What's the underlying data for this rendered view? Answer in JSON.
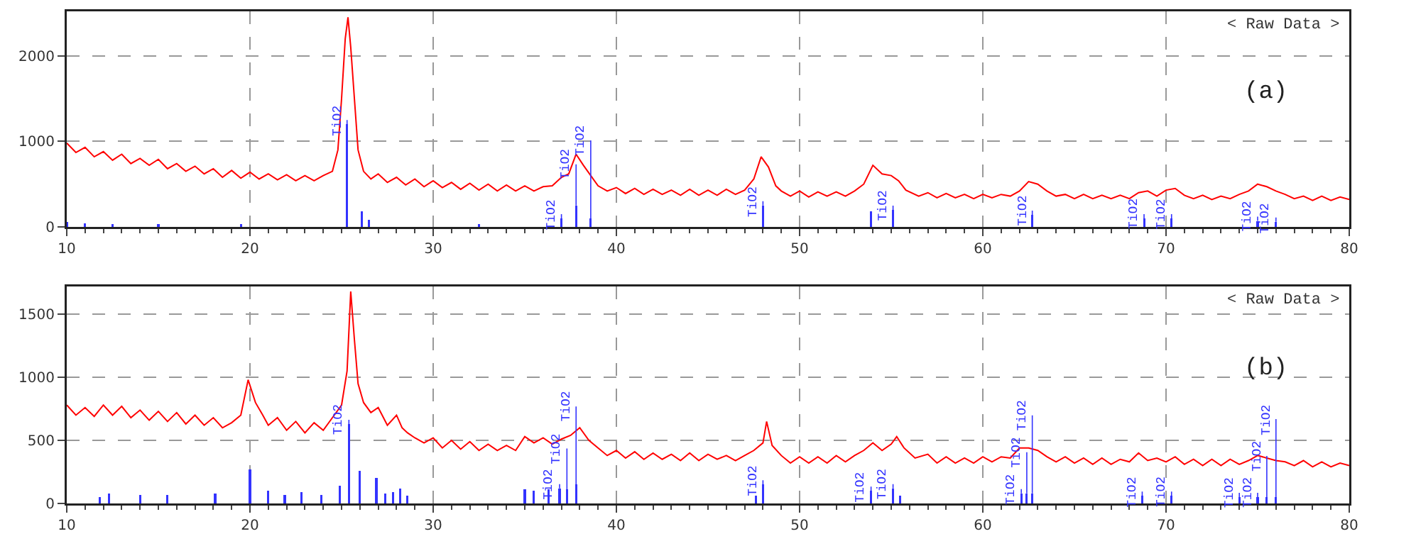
{
  "chart_data": [
    {
      "type": "line",
      "annotations": [
        "< Raw Data >",
        "(a)",
        {
          "text": "TiO2",
          "x": 25.3,
          "y": 1200
        },
        {
          "text": "TiO2",
          "x": 37,
          "y": 100
        },
        {
          "text": "TiO2",
          "x": 37.8,
          "y": 250
        },
        {
          "text": "TiO2",
          "x": 38.6,
          "y": 100
        },
        {
          "text": "TiO2",
          "x": 48,
          "y": 250
        },
        {
          "text": "TiO2",
          "x": 55.1,
          "y": 200
        },
        {
          "text": "TiO2",
          "x": 62.7,
          "y": 140
        },
        {
          "text": "TiO2",
          "x": 68.8,
          "y": 100
        },
        {
          "text": "TiO2",
          "x": 70.3,
          "y": 100
        },
        {
          "text": "TiO2",
          "x": 75,
          "y": 70
        },
        {
          "text": "TiO2",
          "x": 76,
          "y": 60
        }
      ],
      "xlim": [
        10,
        80
      ],
      "xticks": [
        10,
        20,
        30,
        40,
        50,
        60,
        70,
        80
      ],
      "ylim": [
        0,
        2520
      ],
      "yticks": [
        0,
        1000,
        2000
      ],
      "grid": true,
      "line_style": "solid",
      "marker": "none",
      "series": [
        {
          "type": "line",
          "color": "#ff0000",
          "x": [
            10,
            10.5,
            11,
            11.5,
            12,
            12.5,
            13,
            13.5,
            14,
            14.5,
            15,
            15.5,
            16,
            16.5,
            17,
            17.5,
            18,
            18.5,
            19,
            19.5,
            20,
            20.5,
            21,
            21.5,
            22,
            22.5,
            23,
            23.5,
            24,
            24.5,
            24.8,
            25.0,
            25.2,
            25.35,
            25.5,
            25.7,
            25.9,
            26.2,
            26.6,
            27,
            27.5,
            28,
            28.5,
            29,
            29.5,
            30,
            30.5,
            31,
            31.5,
            32,
            32.5,
            33,
            33.5,
            34,
            34.5,
            35,
            35.5,
            36,
            36.5,
            37,
            37.4,
            37.8,
            38.2,
            38.6,
            39,
            39.5,
            40,
            40.5,
            41,
            41.5,
            42,
            42.5,
            43,
            43.5,
            44,
            44.5,
            45,
            45.5,
            46,
            46.5,
            47,
            47.5,
            47.9,
            48.3,
            48.7,
            49,
            49.5,
            50,
            50.5,
            51,
            51.5,
            52,
            52.5,
            53,
            53.5,
            54,
            54.5,
            55,
            55.4,
            55.8,
            56.5,
            57,
            57.5,
            58,
            58.5,
            59,
            59.5,
            60,
            60.5,
            61,
            61.5,
            62,
            62.5,
            63,
            63.5,
            64,
            64.5,
            65,
            65.5,
            66,
            66.5,
            67,
            67.5,
            68,
            68.5,
            69,
            69.5,
            70,
            70.5,
            71,
            71.5,
            72,
            72.5,
            73,
            73.5,
            74,
            74.5,
            75,
            75.5,
            76,
            76.5,
            77,
            77.5,
            78,
            78.5,
            79,
            79.5,
            80
          ],
          "values": [
            980,
            870,
            930,
            820,
            880,
            780,
            850,
            740,
            800,
            720,
            790,
            680,
            740,
            650,
            710,
            620,
            680,
            580,
            660,
            570,
            640,
            560,
            620,
            550,
            610,
            540,
            600,
            540,
            600,
            650,
            900,
            1500,
            2200,
            2450,
            2100,
            1500,
            900,
            650,
            560,
            620,
            520,
            580,
            490,
            560,
            470,
            540,
            460,
            520,
            440,
            510,
            430,
            500,
            420,
            490,
            420,
            480,
            420,
            470,
            480,
            580,
            620,
            850,
            720,
            600,
            480,
            420,
            460,
            390,
            450,
            380,
            440,
            380,
            430,
            370,
            440,
            370,
            430,
            370,
            440,
            380,
            430,
            560,
            820,
            700,
            480,
            420,
            360,
            420,
            350,
            410,
            360,
            410,
            360,
            420,
            500,
            720,
            620,
            600,
            540,
            430,
            360,
            400,
            340,
            390,
            340,
            380,
            330,
            380,
            340,
            380,
            360,
            420,
            530,
            500,
            420,
            360,
            380,
            330,
            380,
            330,
            370,
            330,
            370,
            330,
            400,
            420,
            360,
            430,
            450,
            370,
            330,
            370,
            320,
            360,
            330,
            380,
            420,
            500,
            470,
            420,
            380,
            330,
            360,
            310,
            360,
            310,
            350,
            320
          ]
        },
        {
          "type": "bar",
          "color": "#3333ff",
          "x": [
            10,
            11,
            12.5,
            15,
            19.5,
            25.3,
            26.1,
            26.5,
            32.5,
            37,
            37.8,
            38.6,
            48,
            53.9,
            55.1,
            62.7,
            68.8,
            70.3,
            75,
            76
          ],
          "values": [
            60,
            40,
            30,
            30,
            30,
            1200,
            180,
            80,
            30,
            100,
            250,
            100,
            250,
            180,
            200,
            140,
            100,
            100,
            70,
            60
          ]
        }
      ]
    },
    {
      "type": "line",
      "annotations": [
        "< Raw Data >",
        "(b)",
        {
          "text": "TiO2",
          "x": 25.4,
          "y": 630
        },
        {
          "text": "TiO2",
          "x": 36.9,
          "y": 120
        },
        {
          "text": "TiO2",
          "x": 37.3,
          "y": 110
        },
        {
          "text": "TiO2",
          "x": 37.8,
          "y": 150
        },
        {
          "text": "TiO2",
          "x": 48,
          "y": 150
        },
        {
          "text": "TiO2",
          "x": 53.9,
          "y": 100
        },
        {
          "text": "TiO2",
          "x": 55.1,
          "y": 120
        },
        {
          "text": "TiO2",
          "x": 62.1,
          "y": 80
        },
        {
          "text": "TiO2",
          "x": 62.4,
          "y": 80
        },
        {
          "text": "TiO2",
          "x": 62.7,
          "y": 80
        },
        {
          "text": "TiO2",
          "x": 68.7,
          "y": 60
        },
        {
          "text": "TiO2",
          "x": 70.3,
          "y": 60
        },
        {
          "text": "TiO2",
          "x": 74,
          "y": 50
        },
        {
          "text": "TiO2",
          "x": 75,
          "y": 50
        },
        {
          "text": "TiO2",
          "x": 75.5,
          "y": 50
        },
        {
          "text": "TiO2",
          "x": 76,
          "y": 50
        }
      ],
      "xlim": [
        10,
        80
      ],
      "xticks": [
        10,
        20,
        30,
        40,
        50,
        60,
        70,
        80
      ],
      "ylim": [
        0,
        1720
      ],
      "yticks": [
        0,
        500,
        1000,
        1500
      ],
      "grid": true,
      "line_style": "solid",
      "marker": "none",
      "series": [
        {
          "type": "line",
          "color": "#ff0000",
          "x": [
            10,
            10.5,
            11,
            11.5,
            12,
            12.5,
            13,
            13.5,
            14,
            14.5,
            15,
            15.5,
            16,
            16.5,
            17,
            17.5,
            18,
            18.5,
            19,
            19.5,
            19.9,
            20.3,
            20.7,
            21,
            21.5,
            22,
            22.5,
            23,
            23.5,
            24,
            24.5,
            25,
            25.3,
            25.5,
            25.7,
            25.9,
            26.2,
            26.6,
            27,
            27.5,
            28,
            28.3,
            28.6,
            29,
            29.5,
            30,
            30.5,
            31,
            31.5,
            32,
            32.5,
            33,
            33.5,
            34,
            34.5,
            35,
            35.5,
            36,
            36.5,
            37,
            37.5,
            38,
            38.5,
            39,
            39.5,
            40,
            40.5,
            41,
            41.5,
            42,
            42.5,
            43,
            43.5,
            44,
            44.5,
            45,
            45.5,
            46,
            46.5,
            47,
            47.5,
            48,
            48.2,
            48.5,
            49,
            49.5,
            50,
            50.5,
            51,
            51.5,
            52,
            52.5,
            53,
            53.5,
            54,
            54.5,
            55,
            55.3,
            55.7,
            56.3,
            57,
            57.5,
            58,
            58.5,
            59,
            59.5,
            60,
            60.5,
            61,
            61.5,
            62,
            62.5,
            63,
            63.5,
            64,
            64.5,
            65,
            65.5,
            66,
            66.5,
            67,
            67.5,
            68,
            68.5,
            69,
            69.5,
            70,
            70.5,
            71,
            71.5,
            72,
            72.5,
            73,
            73.5,
            74,
            74.5,
            75,
            75.5,
            76,
            76.5,
            77,
            77.5,
            78,
            78.5,
            79,
            79.5,
            80
          ],
          "values": [
            780,
            700,
            760,
            690,
            780,
            700,
            770,
            680,
            740,
            660,
            730,
            650,
            720,
            630,
            700,
            620,
            680,
            600,
            640,
            700,
            980,
            800,
            700,
            620,
            680,
            580,
            650,
            560,
            640,
            580,
            680,
            780,
            1050,
            1680,
            1300,
            950,
            800,
            720,
            760,
            620,
            700,
            600,
            560,
            520,
            480,
            520,
            440,
            500,
            430,
            490,
            420,
            470,
            420,
            460,
            420,
            530,
            480,
            520,
            470,
            510,
            540,
            600,
            500,
            440,
            380,
            420,
            360,
            410,
            350,
            400,
            350,
            390,
            340,
            400,
            340,
            390,
            350,
            380,
            340,
            380,
            420,
            480,
            650,
            460,
            380,
            320,
            370,
            320,
            370,
            320,
            380,
            330,
            380,
            420,
            480,
            420,
            470,
            530,
            440,
            360,
            390,
            320,
            370,
            320,
            360,
            320,
            370,
            330,
            370,
            360,
            440,
            440,
            420,
            370,
            330,
            370,
            320,
            360,
            310,
            360,
            310,
            350,
            330,
            400,
            340,
            360,
            330,
            370,
            310,
            350,
            300,
            350,
            300,
            350,
            310,
            340,
            380,
            360,
            340,
            330,
            300,
            340,
            290,
            330,
            290,
            320,
            300
          ]
        },
        {
          "type": "bar",
          "color": "#3333ff",
          "x": [
            11.8,
            12.3,
            14,
            15.5,
            18.1,
            20,
            21,
            21.9,
            22.8,
            23.9,
            24.9,
            25.4,
            26,
            26.9,
            27.4,
            27.8,
            28.2,
            28.6,
            35,
            35.5,
            36.3,
            36.9,
            37.3,
            37.8,
            47.6,
            48,
            53.9,
            55.1,
            55.5,
            62.1,
            62.4,
            62.7,
            68.7,
            70.3,
            74,
            75,
            75.5,
            76
          ],
          "values": [
            50,
            80,
            70,
            70,
            80,
            270,
            100,
            70,
            90,
            70,
            140,
            630,
            260,
            200,
            80,
            90,
            120,
            60,
            110,
            100,
            110,
            120,
            110,
            150,
            60,
            150,
            100,
            120,
            60,
            80,
            80,
            80,
            60,
            60,
            50,
            50,
            50,
            50
          ]
        }
      ]
    }
  ]
}
